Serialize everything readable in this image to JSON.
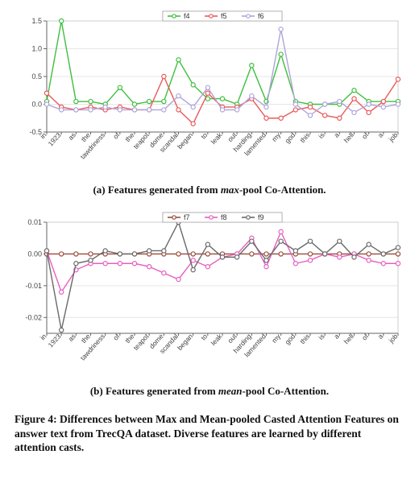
{
  "x_labels": [
    "in",
    "1923",
    "as",
    "the",
    "tawdriness",
    "of",
    "the",
    "teapot",
    "dome",
    "scandal",
    "began",
    "to",
    "leak",
    "out",
    "harding",
    "lamented",
    "my",
    "god",
    "this",
    "is",
    "a",
    "hell",
    "of",
    "a",
    "job"
  ],
  "chart_a": {
    "type": "line",
    "ylim": [
      -0.5,
      1.5
    ],
    "yticks": [
      -0.5,
      0.0,
      0.5,
      1.0,
      1.5
    ],
    "background_color": "#ffffff",
    "grid_color": "#e6e6e6",
    "axis_color": "#666666",
    "plot_border_color": "#cccccc",
    "line_width": 1.4,
    "marker_size": 2.6,
    "legend": {
      "items": [
        "f4",
        "f5",
        "f6"
      ],
      "colors": [
        "#3fbf3f",
        "#e95a5a",
        "#b0a4d9"
      ],
      "position": "top-center"
    },
    "series": [
      {
        "name": "f4",
        "color": "#3fbf3f",
        "values": [
          0.05,
          1.5,
          0.05,
          0.05,
          0.0,
          0.3,
          0.0,
          0.05,
          0.05,
          0.8,
          0.35,
          0.1,
          0.1,
          0.0,
          0.7,
          0.05,
          0.9,
          0.05,
          0.0,
          0.0,
          0.0,
          0.25,
          0.05,
          0.05,
          0.05
        ]
      },
      {
        "name": "f5",
        "color": "#e95a5a",
        "values": [
          0.2,
          -0.05,
          -0.1,
          -0.05,
          -0.1,
          -0.05,
          -0.1,
          -0.1,
          0.5,
          -0.1,
          -0.35,
          0.2,
          -0.05,
          -0.05,
          0.1,
          -0.25,
          -0.25,
          -0.1,
          -0.05,
          -0.2,
          -0.25,
          0.1,
          -0.15,
          0.05,
          0.45
        ]
      },
      {
        "name": "f6",
        "color": "#b0a4d9",
        "values": [
          0.0,
          -0.1,
          -0.1,
          -0.1,
          -0.05,
          -0.1,
          -0.1,
          -0.1,
          -0.1,
          0.15,
          -0.05,
          0.3,
          -0.1,
          -0.1,
          0.15,
          -0.05,
          1.35,
          0.0,
          -0.2,
          0.0,
          0.05,
          -0.15,
          0.0,
          -0.05,
          0.0
        ]
      }
    ]
  },
  "chart_b": {
    "type": "line",
    "ylim": [
      -0.025,
      0.01
    ],
    "yticks": [
      -0.02,
      -0.01,
      0.0,
      0.01
    ],
    "background_color": "#ffffff",
    "grid_color": "#e6e6e6",
    "axis_color": "#666666",
    "plot_border_color": "#cccccc",
    "line_width": 1.4,
    "marker_size": 2.6,
    "legend": {
      "items": [
        "f7",
        "f8",
        "f9"
      ],
      "colors": [
        "#9a4b3a",
        "#e75fbf",
        "#6a6a6a"
      ],
      "position": "top-center"
    },
    "series": [
      {
        "name": "f7",
        "color": "#9a4b3a",
        "values": [
          0.0,
          0.0,
          0.0,
          0.0,
          0.0,
          0.0,
          0.0,
          0.0,
          0.0,
          0.0,
          0.0,
          0.0,
          0.0,
          0.0,
          0.0,
          0.0,
          0.0,
          0.0,
          0.0,
          0.0,
          0.0,
          0.0,
          0.0,
          0.0,
          0.0
        ]
      },
      {
        "name": "f8",
        "color": "#e75fbf",
        "values": [
          0.001,
          -0.012,
          -0.005,
          -0.003,
          -0.003,
          -0.003,
          -0.003,
          -0.004,
          -0.006,
          -0.008,
          -0.002,
          -0.004,
          -0.001,
          0.0,
          0.005,
          -0.004,
          0.007,
          -0.003,
          -0.002,
          0.0,
          -0.001,
          0.0,
          -0.002,
          -0.003,
          -0.003
        ]
      },
      {
        "name": "f9",
        "color": "#6a6a6a",
        "values": [
          0.001,
          -0.024,
          -0.003,
          -0.002,
          0.001,
          0.0,
          0.0,
          0.001,
          0.001,
          0.01,
          -0.005,
          0.003,
          -0.001,
          -0.001,
          0.004,
          -0.002,
          0.004,
          0.001,
          0.004,
          0.0,
          0.004,
          -0.001,
          0.003,
          0.0,
          0.002
        ]
      }
    ]
  },
  "captions": {
    "a_prefix": "(a) Features generated from ",
    "a_italic": "max",
    "a_suffix": "-pool Co-Attention.",
    "b_prefix": "(b) Features generated from ",
    "b_italic": "mean",
    "b_suffix": "-pool Co-Attention.",
    "figure": "Figure 4: Differences between Max and Mean-pooled Casted Attention Features on answer text from TrecQA dataset. Diverse features are learned by different attention casts."
  }
}
